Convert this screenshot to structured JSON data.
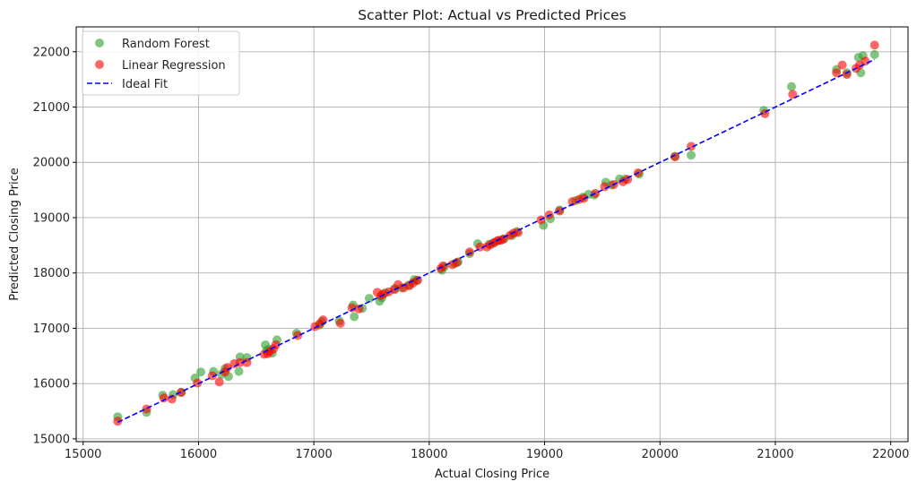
{
  "chart_data": {
    "type": "scatter",
    "title": "Scatter Plot: Actual vs Predicted Prices",
    "xlabel": "Actual Closing Price",
    "ylabel": "Predicted Closing Price",
    "xlim": [
      14940,
      22150
    ],
    "ylim": [
      14950,
      22450
    ],
    "xticks": [
      15000,
      16000,
      17000,
      18000,
      19000,
      20000,
      21000,
      22000
    ],
    "yticks": [
      15000,
      16000,
      17000,
      18000,
      19000,
      20000,
      21000,
      22000
    ],
    "xtick_labels": [
      "15000",
      "16000",
      "17000",
      "18000",
      "19000",
      "20000",
      "21000",
      "22000"
    ],
    "ytick_labels": [
      "15000",
      "16000",
      "17000",
      "18000",
      "19000",
      "20000",
      "21000",
      "22000"
    ],
    "grid": true,
    "legend_position": "top-left",
    "series": [
      {
        "name": "Random Forest",
        "color": "#2ca02c",
        "x": [
          15300,
          15550,
          15690,
          15780,
          15850,
          15970,
          16020,
          16130,
          16200,
          16230,
          16260,
          16350,
          16360,
          16420,
          16580,
          16590,
          16610,
          16640,
          16680,
          16850,
          17050,
          17070,
          17220,
          17340,
          17350,
          17420,
          17480,
          17570,
          17590,
          17620,
          17700,
          17760,
          17820,
          17870,
          17890,
          18110,
          18130,
          18220,
          18250,
          18350,
          18420,
          18520,
          18560,
          18600,
          18650,
          18720,
          18760,
          18990,
          19050,
          19130,
          19270,
          19330,
          19380,
          19430,
          19530,
          19580,
          19650,
          19700,
          19820,
          20130,
          20270,
          20900,
          21140,
          21530,
          21620,
          21720,
          21740,
          21760,
          21860
        ],
        "y": [
          15400,
          15480,
          15790,
          15800,
          15840,
          16100,
          16210,
          16220,
          16170,
          16270,
          16130,
          16220,
          16480,
          16470,
          16700,
          16600,
          16620,
          16550,
          16790,
          16910,
          17060,
          17120,
          17130,
          17420,
          17210,
          17360,
          17540,
          17490,
          17550,
          17640,
          17720,
          17730,
          17780,
          17880,
          17860,
          18050,
          18110,
          18170,
          18200,
          18350,
          18530,
          18520,
          18540,
          18590,
          18620,
          18680,
          18750,
          18860,
          18980,
          19140,
          19310,
          19370,
          19420,
          19410,
          19640,
          19590,
          19700,
          19700,
          19790,
          20110,
          20130,
          20940,
          21370,
          21680,
          21620,
          21900,
          21620,
          21930,
          21950
        ]
      },
      {
        "name": "Linear Regression",
        "color": "#ff0000",
        "x": [
          15300,
          15550,
          15700,
          15770,
          15850,
          15990,
          16120,
          16180,
          16230,
          16250,
          16310,
          16360,
          16420,
          16570,
          16600,
          16620,
          16650,
          16670,
          16860,
          17010,
          17050,
          17080,
          17230,
          17330,
          17390,
          17550,
          17580,
          17600,
          17650,
          17700,
          17730,
          17780,
          17830,
          17860,
          17900,
          18100,
          18120,
          18200,
          18240,
          18350,
          18440,
          18500,
          18530,
          18560,
          18590,
          18620,
          18640,
          18700,
          18730,
          18770,
          18970,
          19040,
          19130,
          19240,
          19300,
          19340,
          19440,
          19520,
          19600,
          19680,
          19720,
          19810,
          20130,
          20270,
          20910,
          21150,
          21530,
          21580,
          21620,
          21700,
          21730,
          21780,
          21860
        ],
        "y": [
          15320,
          15540,
          15740,
          15720,
          15840,
          16010,
          16140,
          16030,
          16210,
          16290,
          16360,
          16380,
          16380,
          16530,
          16540,
          16580,
          16630,
          16700,
          16870,
          17030,
          17080,
          17150,
          17090,
          17370,
          17350,
          17650,
          17590,
          17620,
          17660,
          17700,
          17790,
          17730,
          17770,
          17820,
          17870,
          18080,
          18130,
          18150,
          18190,
          18380,
          18470,
          18470,
          18510,
          18550,
          18580,
          18590,
          18610,
          18680,
          18720,
          18730,
          18960,
          19050,
          19120,
          19290,
          19330,
          19350,
          19440,
          19560,
          19600,
          19650,
          19690,
          19810,
          20100,
          20290,
          20880,
          21230,
          21620,
          21760,
          21590,
          21700,
          21760,
          21830,
          22120
        ]
      },
      {
        "name": "Ideal Fit",
        "color": "#0000ff",
        "line": "dashed",
        "x": [
          15300,
          21860
        ],
        "y": [
          15300,
          21860
        ]
      }
    ]
  }
}
